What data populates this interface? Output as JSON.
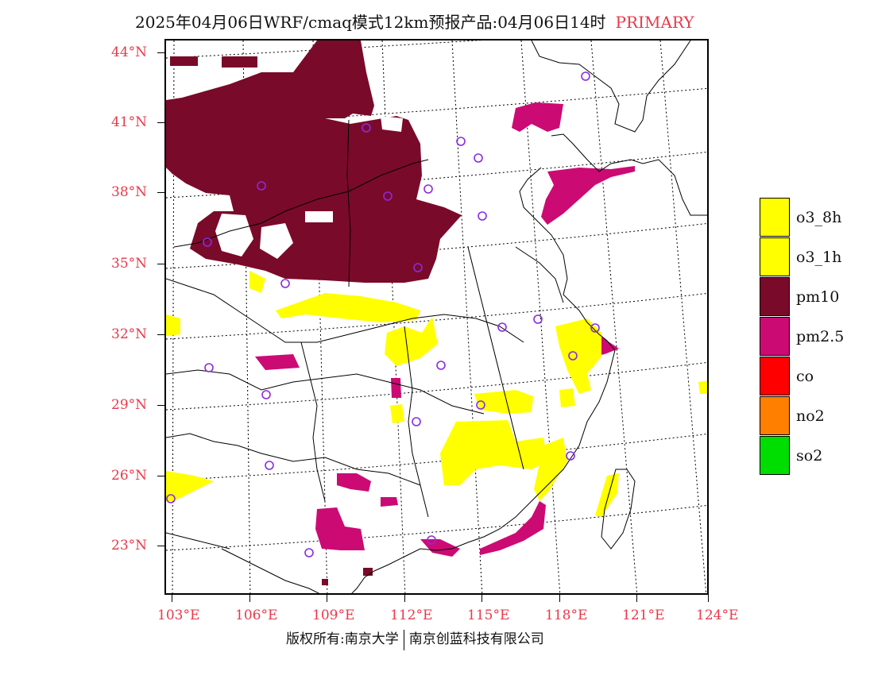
{
  "header": {
    "title": "2025年04月06日WRF/cmaq模式12km预报产品:04月06日14时",
    "tag": "PRIMARY"
  },
  "axes": {
    "lat_labels": [
      "44°N",
      "41°N",
      "38°N",
      "35°N",
      "32°N",
      "29°N",
      "26°N",
      "23°N"
    ],
    "lon_labels": [
      "103°E",
      "106°E",
      "109°E",
      "112°E",
      "115°E",
      "118°E",
      "121°E",
      "124°E"
    ]
  },
  "legend": {
    "items": [
      {
        "label": "o3_8h",
        "color": "#ffff00"
      },
      {
        "label": "o3_1h",
        "color": "#ffff00"
      },
      {
        "label": "pm10",
        "color": "#7a0a2a"
      },
      {
        "label": "pm2.5",
        "color": "#cc0a74"
      },
      {
        "label": "co",
        "color": "#ff0000"
      },
      {
        "label": "no2",
        "color": "#ff7f00"
      },
      {
        "label": "so2",
        "color": "#00dd00"
      }
    ]
  },
  "colors": {
    "pm10": "#7a0a2a",
    "pm25": "#cc0a74",
    "o3": "#ffff00",
    "station": "#8a2be2",
    "axis_label": "#e8394a"
  },
  "footer": {
    "left": "版权所有:南京大学",
    "right": "南京创蓝科技有限公司"
  }
}
